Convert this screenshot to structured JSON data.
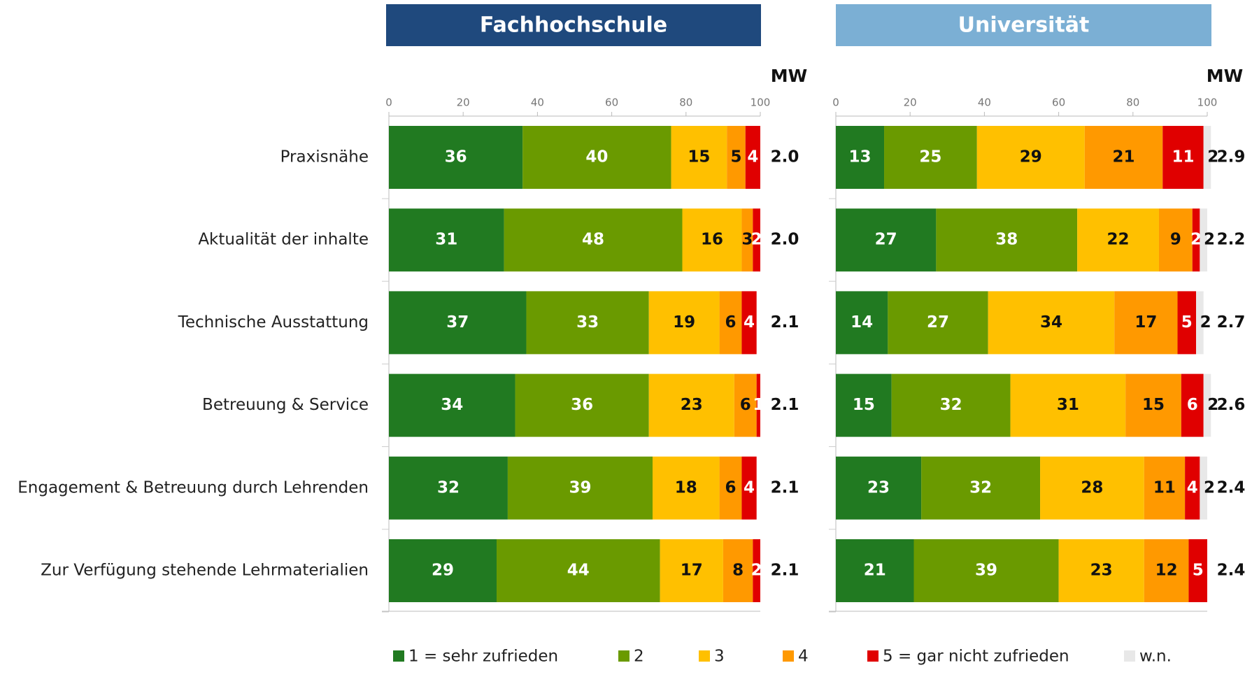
{
  "chart_data": [
    {
      "type": "bar",
      "title": "Fachhochschule",
      "title_color": "#1f497d",
      "categories": [
        "Praxisnähe",
        "Aktualität der inhalte",
        "Technische Ausstattung",
        "Betreuung & Service",
        "Engagement & Betreuung durch Lehrenden",
        "Zur Verfügung stehende Lehrmaterialien"
      ],
      "xlim": [
        0,
        100
      ],
      "xticks": [
        0,
        20,
        40,
        60,
        80,
        100
      ],
      "series": [
        {
          "name": "1 = sehr zufrieden",
          "color": "#217a21",
          "values": [
            36,
            31,
            37,
            34,
            32,
            29
          ]
        },
        {
          "name": "2",
          "color": "#6a9a00",
          "values": [
            40,
            48,
            33,
            36,
            39,
            44
          ]
        },
        {
          "name": "3",
          "color": "#ffc000",
          "values": [
            15,
            16,
            19,
            23,
            18,
            17
          ]
        },
        {
          "name": "4",
          "color": "#ff9900",
          "values": [
            5,
            3,
            6,
            6,
            6,
            8
          ]
        },
        {
          "name": "5 = gar nicht zufrieden",
          "color": "#e00000",
          "values": [
            4,
            2,
            4,
            1,
            4,
            2
          ]
        },
        {
          "name": "w.n.",
          "color": "#e8e8e8",
          "values": [
            null,
            null,
            null,
            null,
            null,
            null
          ]
        }
      ],
      "mean_label": "MW",
      "means": [
        2.0,
        2.0,
        2.1,
        2.1,
        2.1,
        2.1
      ],
      "mean_labels": [
        "2.0",
        "2.0",
        "2.1",
        "2.1",
        "2.1",
        "2.1"
      ]
    },
    {
      "type": "bar",
      "title": "Universität",
      "title_color": "#7bafd4",
      "xlim": [
        0,
        100
      ],
      "xticks": [
        0,
        20,
        40,
        60,
        80,
        100
      ],
      "series": [
        {
          "color": "#217a21",
          "values": [
            13,
            27,
            14,
            15,
            23,
            21
          ]
        },
        {
          "color": "#6a9a00",
          "values": [
            25,
            38,
            27,
            32,
            32,
            39
          ]
        },
        {
          "color": "#ffc000",
          "values": [
            29,
            22,
            34,
            31,
            28,
            23
          ]
        },
        {
          "color": "#ff9900",
          "values": [
            21,
            9,
            17,
            15,
            11,
            12
          ]
        },
        {
          "color": "#e00000",
          "values": [
            11,
            2,
            5,
            6,
            4,
            5
          ]
        },
        {
          "color": "#e8e8e8",
          "values": [
            2,
            2,
            2,
            2,
            2,
            null
          ]
        }
      ],
      "mean_label": "MW",
      "means": [
        2.9,
        2.2,
        2.7,
        2.6,
        2.4,
        2.4
      ],
      "mean_labels": [
        "2.9",
        "2.2",
        "2.7",
        "2.6",
        "2.4",
        "2.4"
      ]
    }
  ]
}
